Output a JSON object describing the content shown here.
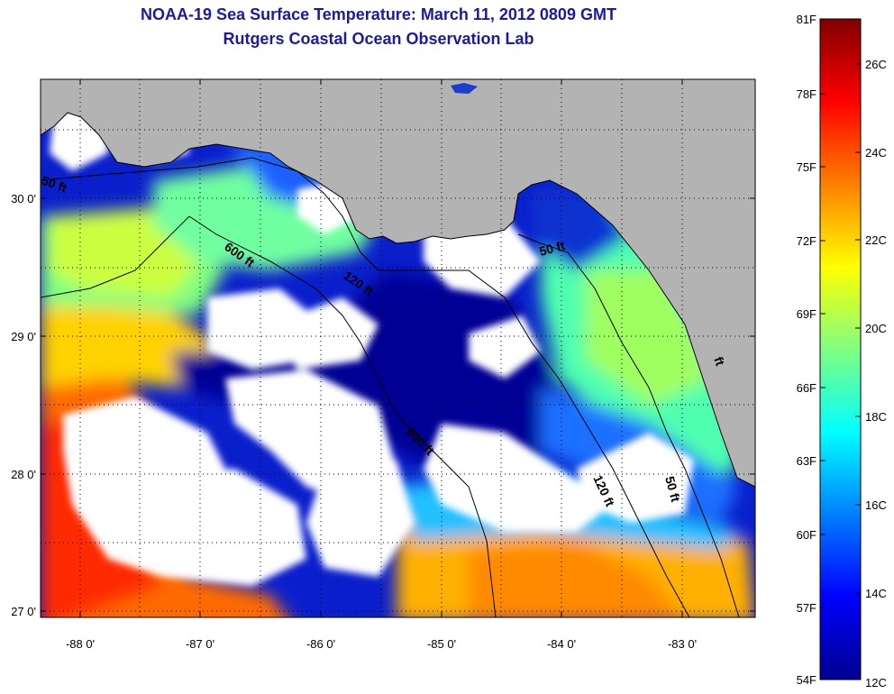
{
  "title_line1": "NOAA-19 Sea Surface Temperature:  March 11, 2012 0809 GMT",
  "title_line2": "Rutgers Coastal Ocean Observation Lab",
  "map": {
    "lon_ticks": [
      "-88 0'",
      "-87 0'",
      "-86 0'",
      "-85 0'",
      "-84 0'",
      "-83 0'"
    ],
    "lat_ticks": [
      "30 0'",
      "29 0'",
      "28 0'",
      "27 0'"
    ],
    "contours": [
      {
        "label": "600 ft"
      },
      {
        "label": "120 ft"
      },
      {
        "label": "50 ft"
      },
      {
        "label": "600 ft"
      },
      {
        "label": "120 ft"
      },
      {
        "label": "50 ft"
      },
      {
        "label": "50 ft"
      },
      {
        "label": "ft"
      }
    ],
    "colors": {
      "land": "#b3b3b3",
      "cloud": "#ffffff"
    }
  },
  "colorbar": {
    "fahrenheit": [
      "81F",
      "78F",
      "75F",
      "72F",
      "69F",
      "66F",
      "63F",
      "60F",
      "57F",
      "54F"
    ],
    "celsius": [
      "26C",
      "24C",
      "22C",
      "20C",
      "18C",
      "16C",
      "14C",
      "12C"
    ],
    "colormap": [
      "#00008f",
      "#0000ff",
      "#0080ff",
      "#00ffff",
      "#80ff80",
      "#ffff00",
      "#ff8000",
      "#ff0000",
      "#800000"
    ]
  }
}
